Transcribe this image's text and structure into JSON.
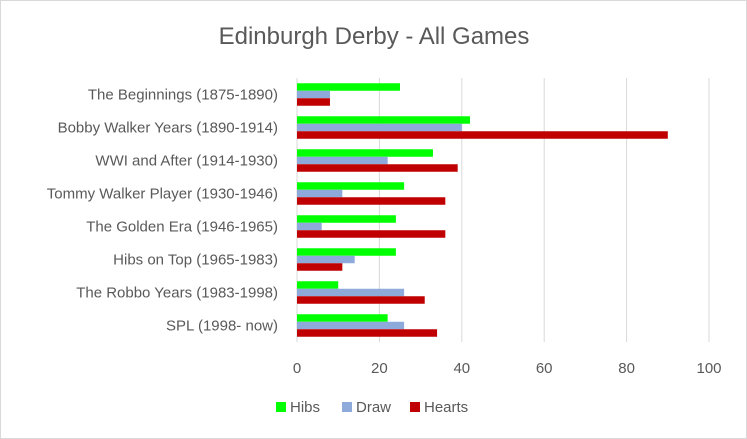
{
  "chart_data": {
    "type": "bar",
    "orientation": "horizontal",
    "title": "Edinburgh Derby - All Games",
    "xlabel": "",
    "ylabel": "",
    "xlim": [
      0,
      100
    ],
    "x_ticks": [
      "0",
      "20",
      "40",
      "60",
      "80",
      "100"
    ],
    "grid": true,
    "legend_position": "bottom",
    "categories": [
      "The Beginnings (1875-1890)",
      "Bobby Walker Years (1890-1914)",
      "WWI and After (1914-1930)",
      "Tommy Walker Player (1930-1946)",
      "The Golden Era (1946-1965)",
      "Hibs on Top (1965-1983)",
      "The Robbo Years (1983-1998)",
      "SPL (1998- now)"
    ],
    "series": [
      {
        "name": "Hibs",
        "color": "#00ff00",
        "values": [
          25,
          42,
          33,
          26,
          24,
          24,
          10,
          22
        ]
      },
      {
        "name": "Draw",
        "color": "#8eaadb",
        "values": [
          8,
          40,
          22,
          11,
          6,
          14,
          26,
          26
        ]
      },
      {
        "name": "Hearts",
        "color": "#c00000",
        "values": [
          8,
          90,
          39,
          36,
          36,
          11,
          31,
          34
        ]
      }
    ]
  }
}
